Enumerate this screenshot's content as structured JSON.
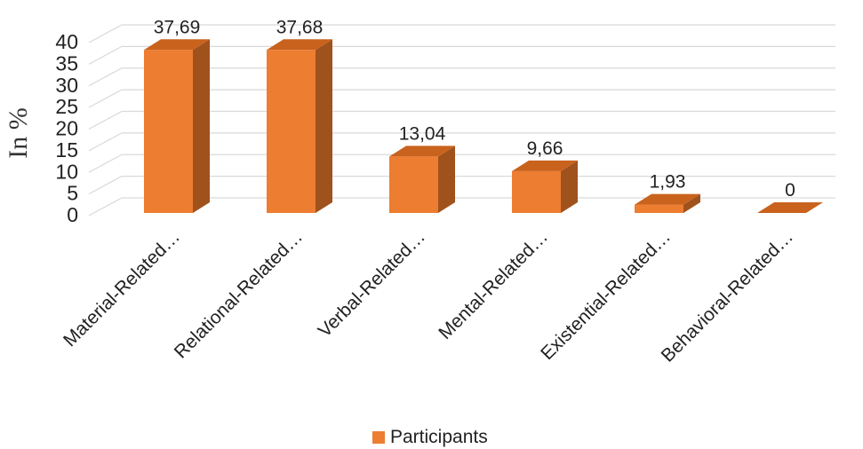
{
  "chart_data": {
    "type": "bar",
    "categories": [
      "Material-Related…",
      "Relational-Related…",
      "Verbal-Related…",
      "Mental-Related…",
      "Existential-Related…",
      "Behavioral-Related…"
    ],
    "series": [
      {
        "name": "Participants",
        "values": [
          37.69,
          37.68,
          13.04,
          9.66,
          1.93,
          0
        ]
      }
    ],
    "data_labels": [
      "37,69",
      "37,68",
      "13,04",
      "9,66",
      "1,93",
      "0"
    ],
    "ylabel": "In %",
    "xlabel": "",
    "ylim": [
      0,
      40
    ],
    "yticks": [
      0,
      5,
      10,
      15,
      20,
      25,
      30,
      35,
      40
    ],
    "grid": true,
    "legend_position": "bottom",
    "style": "3d-column",
    "colors": {
      "front": "#ED7D31",
      "side": "#A0521C",
      "top": "#C9621D",
      "grid": "#D9D9D9"
    }
  }
}
